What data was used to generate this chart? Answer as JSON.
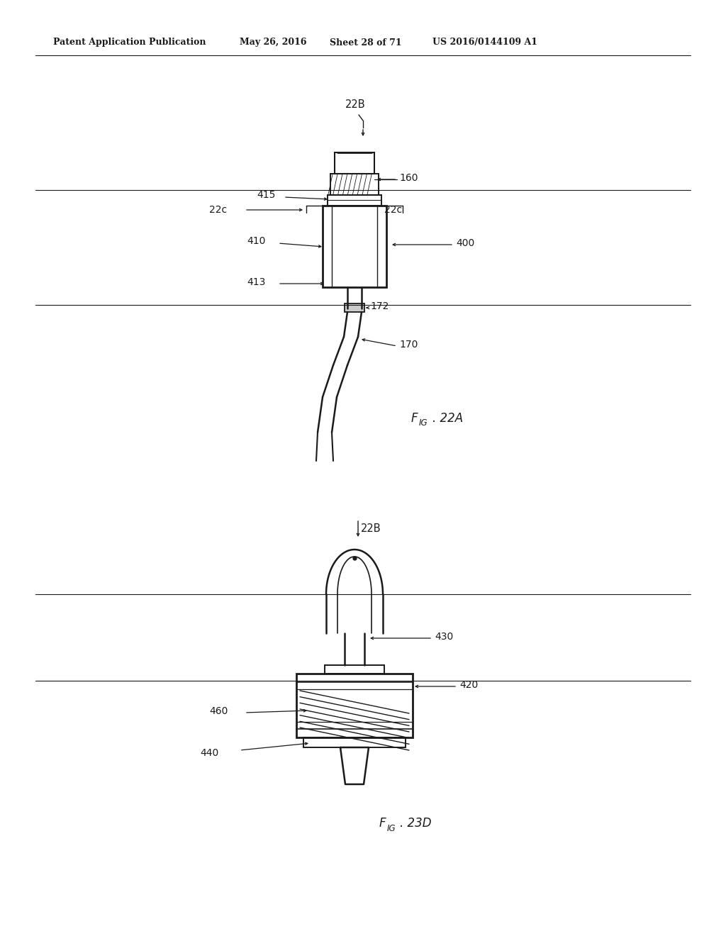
{
  "bg_color": "#ffffff",
  "line_color": "#1a1a1a",
  "fig_width": 10.24,
  "fig_height": 13.2,
  "header_left": "Patent Application Publication",
  "header_mid1": "May 26, 2016",
  "header_mid2": "Sheet 28 of 71",
  "header_right": "US 2016/0144109 A1"
}
